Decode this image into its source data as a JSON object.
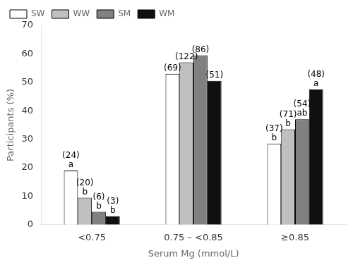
{
  "chart_data": {
    "type": "bar",
    "categories": [
      "<0.75",
      "0.75 – <0.85",
      "≥0.85"
    ],
    "series": [
      {
        "name": "SW",
        "color": "#ffffff",
        "values": [
          19.0,
          53.0,
          28.5
        ],
        "counts": [
          24,
          69,
          37
        ],
        "count_labels": [
          "(24)",
          "(69)",
          "(37)"
        ],
        "letters": [
          "a",
          null,
          "b"
        ]
      },
      {
        "name": "WW",
        "color": "#c0c0c0",
        "values": [
          9.5,
          57.0,
          33.5
        ],
        "counts": [
          20,
          122,
          71
        ],
        "count_labels": [
          "(20)",
          "(122)",
          "(71)"
        ],
        "letters": [
          "b",
          null,
          "b"
        ]
      },
      {
        "name": "SM",
        "color": "#808080",
        "values": [
          4.5,
          59.5,
          37.0
        ],
        "counts": [
          6,
          86,
          54
        ],
        "count_labels": [
          "(6)",
          "(86)",
          "(54)"
        ],
        "letters": [
          "b",
          null,
          "ab"
        ]
      },
      {
        "name": "WM",
        "color": "#101010",
        "values": [
          3.0,
          50.5,
          47.5
        ],
        "counts": [
          3,
          51,
          48
        ],
        "count_labels": [
          "(3)",
          "(51)",
          "(48)"
        ],
        "letters": [
          "b",
          null,
          "a"
        ]
      }
    ],
    "xlabel": "Serum Mg (mmol/L)",
    "ylabel": "Participants (%)",
    "ylim": [
      0,
      70
    ],
    "yticks": [
      0,
      10,
      20,
      30,
      40,
      50,
      60,
      70
    ],
    "grid": false,
    "legend": "upper left"
  }
}
